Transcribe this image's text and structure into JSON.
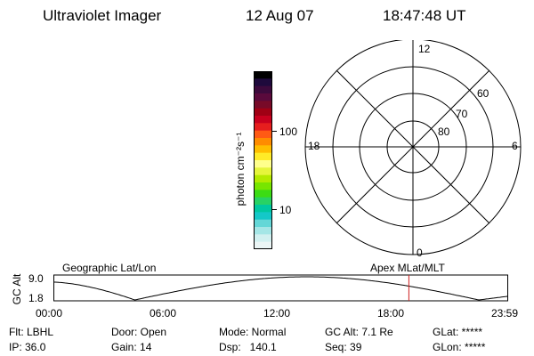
{
  "header": {
    "instrument": "Ultraviolet Imager",
    "date": "12 Aug 07",
    "time": "18:47:48 UT"
  },
  "colorbar": {
    "unit_label": "photon cm⁻²s⁻¹",
    "ticks": [
      "100",
      "10"
    ],
    "colors": [
      "#000000",
      "#1e0a3c",
      "#3c0a3c",
      "#5a0a3c",
      "#780a28",
      "#a00014",
      "#c8001e",
      "#e61e1e",
      "#ff5a14",
      "#ff8c00",
      "#ffbe00",
      "#ffeb28",
      "#ffff8c",
      "#e6f53c",
      "#b4eb00",
      "#78e600",
      "#3cdc14",
      "#28d264",
      "#00c8a0",
      "#14c8c8",
      "#64d7d7",
      "#a5e6e6",
      "#d2f0f0",
      "#ebf5f5"
    ]
  },
  "polar_plot": {
    "mlt_labels": {
      "top": "12",
      "right": "6",
      "bottom": "0",
      "left": "18"
    },
    "lat_labels": [
      "60",
      "70",
      "80"
    ]
  },
  "orbit_plot": {
    "y_axis_label": "GC Alt",
    "y_ticks": [
      "9.0",
      "1.8"
    ],
    "left_caption": "Geographic Lat/Lon",
    "right_caption": "Apex MLat/MLT",
    "x_ticks": [
      "00:00",
      "06:00",
      "12:00",
      "18:00",
      "23:59"
    ],
    "marker_time_hours": 18.796
  },
  "info": {
    "filter": "Flt: LBHL",
    "ip": "IP: 36.0",
    "door": "Door: Open",
    "gain": "Gain: 14",
    "mode": "Mode: Normal",
    "dsp": "Dsp:   140.1",
    "gc_alt": "GC Alt: 7.1 Re",
    "seq": "Seq: 39",
    "glat": "GLat: *****",
    "glon": "GLon: *****"
  }
}
